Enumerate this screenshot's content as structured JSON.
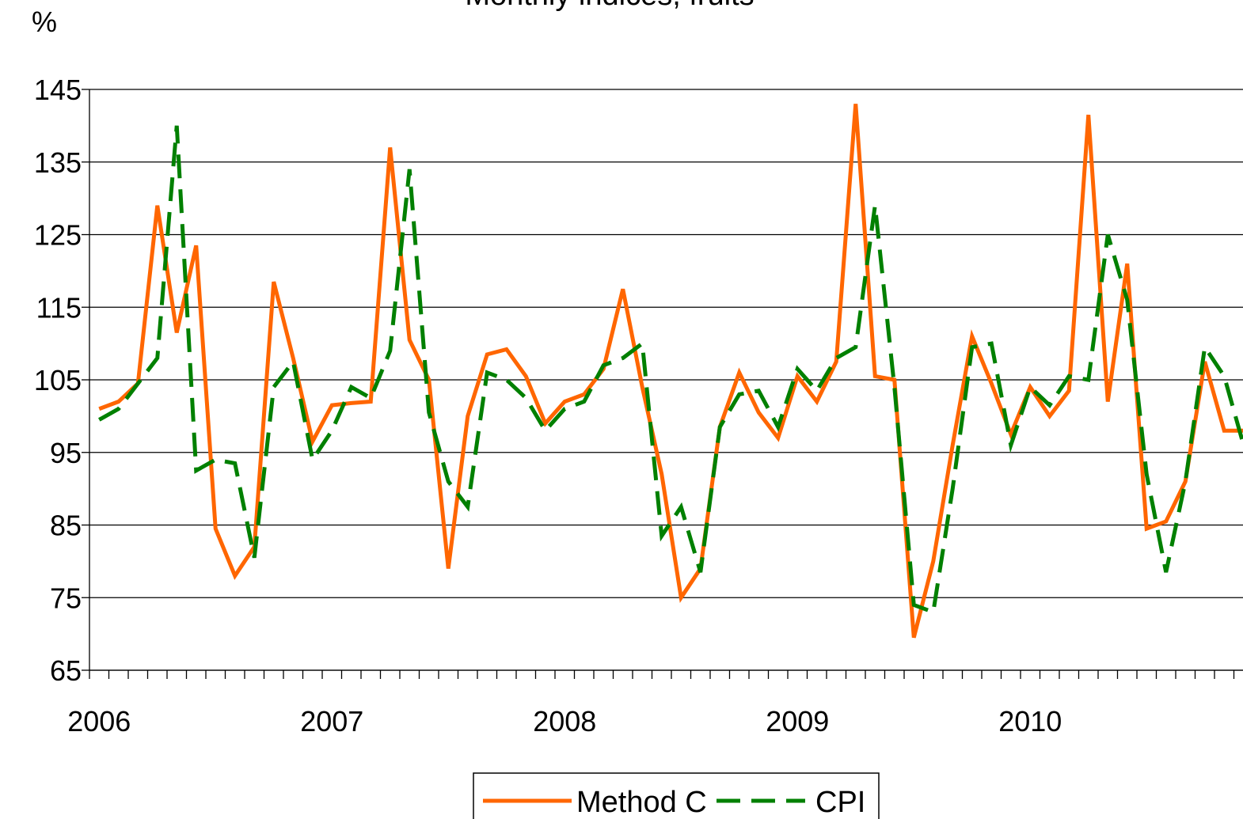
{
  "chart_data": {
    "type": "line",
    "title": "Monthly indices, fruits",
    "ylabel": "%",
    "categories": [
      "2006",
      null,
      null,
      null,
      null,
      null,
      null,
      null,
      null,
      null,
      null,
      null,
      "2007",
      null,
      null,
      null,
      null,
      null,
      null,
      null,
      null,
      null,
      null,
      null,
      "2008",
      null,
      null,
      null,
      null,
      null,
      null,
      null,
      null,
      null,
      null,
      null,
      "2009",
      null,
      null,
      null,
      null,
      null,
      null,
      null,
      null,
      null,
      null,
      null,
      "2010",
      null,
      null,
      null,
      null,
      null,
      null,
      null,
      null,
      null,
      null,
      null
    ],
    "series": [
      {
        "name": "Method C",
        "color": "#ff6600",
        "dash": false,
        "values": [
          101,
          102,
          104.5,
          129,
          111.5,
          123.5,
          84.5,
          78,
          82,
          118.5,
          108,
          96.5,
          101.5,
          101.8,
          102,
          137,
          110.5,
          105,
          79,
          100,
          108.5,
          109.2,
          105.5,
          99,
          102,
          103,
          106.5,
          117.5,
          104,
          92,
          75,
          79,
          98.5,
          106,
          100.5,
          97,
          105.5,
          102,
          107.5,
          143,
          105.5,
          105,
          69.5,
          80,
          96,
          111,
          104.5,
          97.5,
          104,
          100,
          103.5,
          141.5,
          102,
          121,
          84.5,
          85.5,
          91,
          107.5,
          98,
          98
        ]
      },
      {
        "name": "CPI",
        "color": "#008000",
        "dash": true,
        "values": [
          99.5,
          101,
          104.5,
          108,
          140,
          92.5,
          94,
          93.5,
          80.5,
          104,
          107.5,
          94,
          98,
          104,
          102.5,
          109,
          134,
          100.5,
          91,
          87.5,
          106,
          105,
          102.5,
          98,
          101,
          102,
          107,
          108,
          110,
          83.5,
          87.5,
          78.5,
          98.5,
          103,
          103.5,
          98.5,
          106.5,
          103.5,
          108,
          109.5,
          129,
          104,
          74,
          73,
          90,
          109.5,
          110,
          96,
          104,
          101.5,
          105.5,
          105,
          125,
          116,
          92,
          78.5,
          91,
          109.5,
          105.5,
          96
        ]
      }
    ],
    "ylim": [
      65,
      145
    ],
    "yticks": [
      65,
      75,
      85,
      95,
      105,
      115,
      125,
      135,
      145
    ],
    "grid": true,
    "legend": "bottom"
  }
}
